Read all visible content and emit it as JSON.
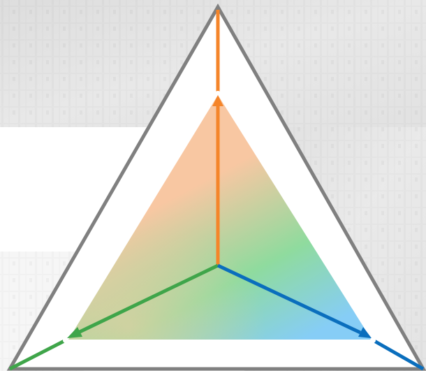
{
  "diagram": {
    "background_photo": {
      "style": "faded grayscale industrial photo (top band and right side)",
      "tint": "#e6e6e6"
    },
    "outer_triangle": {
      "stroke": "#808080"
    },
    "inner_triangle": {
      "gradient_colors": [
        "#f8c7a2",
        "#8fdb9e",
        "#86cdf6"
      ]
    },
    "axes": [
      {
        "id": "top",
        "color": "#f5852a",
        "icon": "arrow-up-icon"
      },
      {
        "id": "left",
        "color": "#3fa54a",
        "icon": "arrow-down-left-icon"
      },
      {
        "id": "right",
        "color": "#0a6ebd",
        "icon": "arrow-down-right-icon"
      }
    ]
  }
}
